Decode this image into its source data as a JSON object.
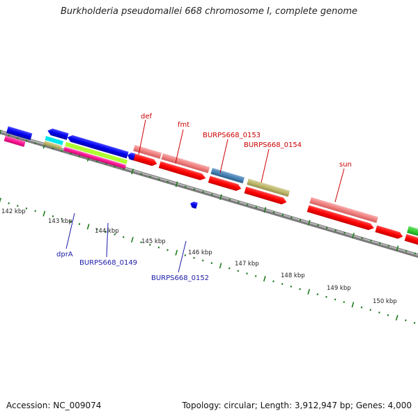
{
  "title": "Burkholderia pseudomallei 668 chromosome I, complete genome",
  "footer": {
    "accession": "Accession: NC_009074",
    "summary": "Topology: circular; Length: 3,912,947 bp; Genes: 4,000"
  },
  "axis_ticks": [
    "142 kbp",
    "143 kbp",
    "144 kbp",
    "145 kbp",
    "146 kbp",
    "147 kbp",
    "148 kbp",
    "149 kbp",
    "150 kbp"
  ],
  "gene_labels": {
    "def": "def",
    "fmt": "fmt",
    "burps0153": "BURPS668_0153",
    "burps0154": "BURPS668_0154",
    "sun": "sun",
    "dpra": "dprA",
    "burps0149": "BURPS668_0149",
    "burps0152": "BURPS668_0152"
  },
  "colors": {
    "cds": "#ff0000",
    "rna_pink": "#f08080",
    "blue_gene": "#0000ee",
    "steel_blue": "#4682b4",
    "khaki": "#bdb76b",
    "magenta": "#ff1493",
    "lime": "#adff2f",
    "cyan": "#00e5ee",
    "green": "#32cd32",
    "backbone": "#808080",
    "tick": "#1f7a1f"
  }
}
